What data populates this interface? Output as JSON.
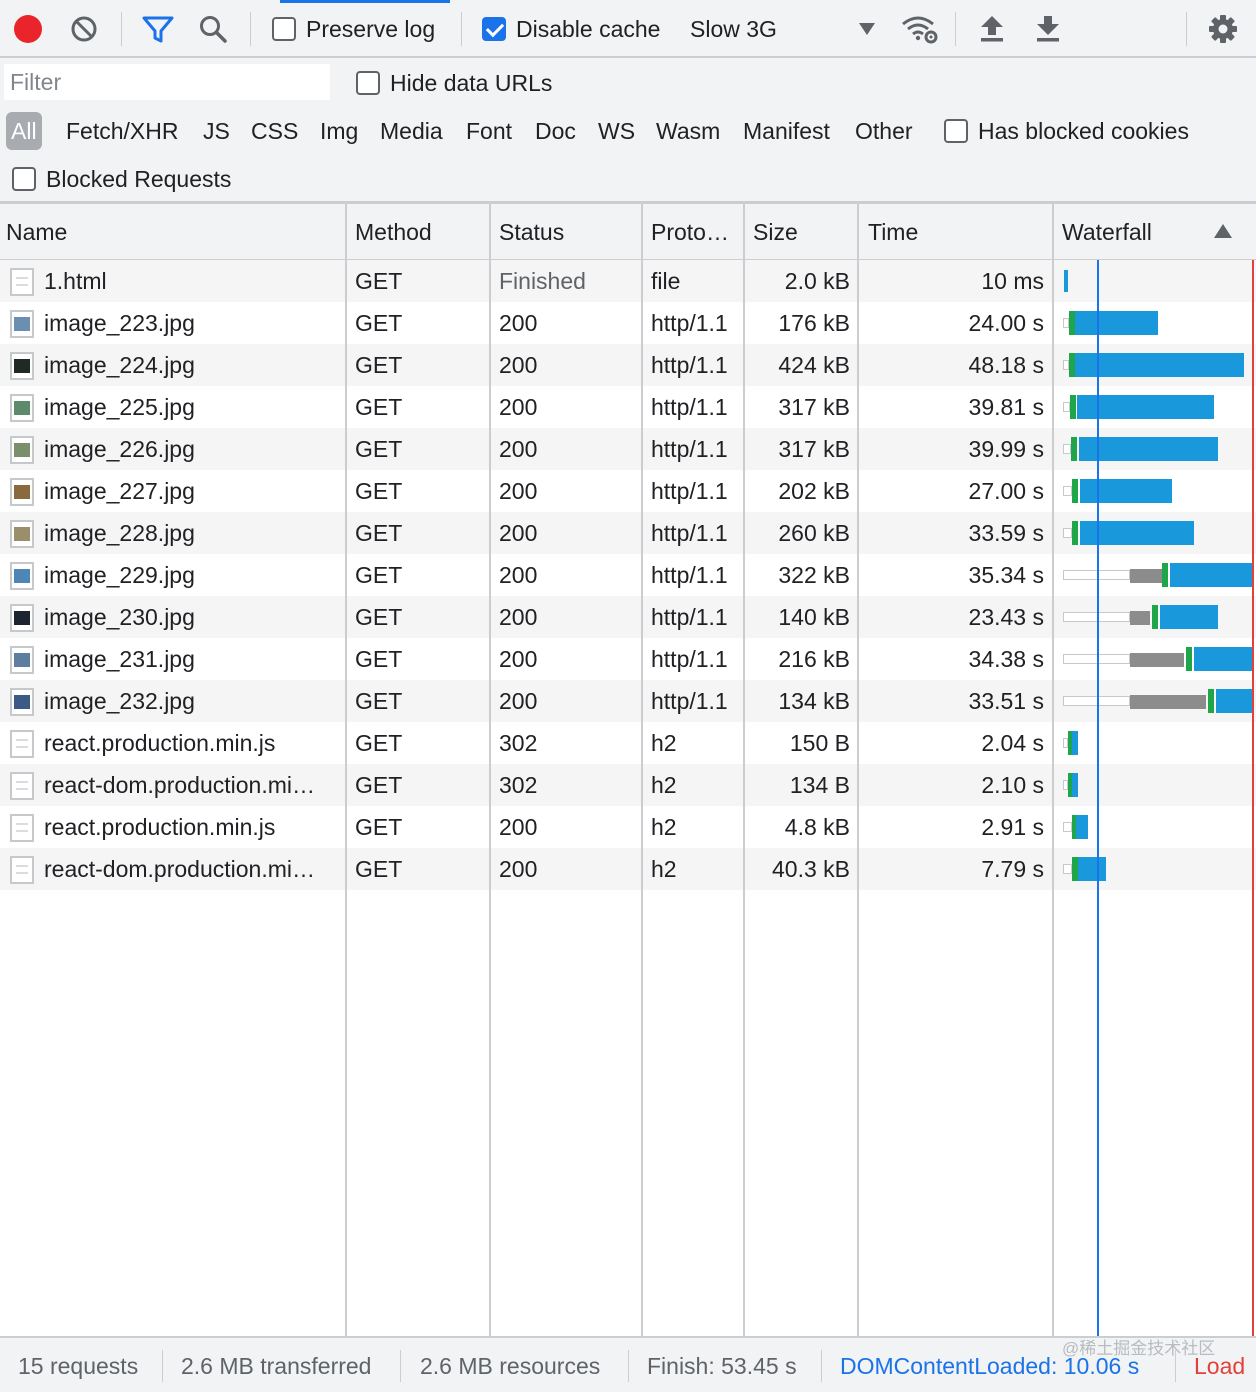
{
  "toolbar": {
    "preserve_log": {
      "label": "Preserve log",
      "checked": false
    },
    "disable_cache": {
      "label": "Disable cache",
      "checked": true
    },
    "throttling": "Slow 3G"
  },
  "filterbar": {
    "filter_placeholder": "Filter",
    "hide_data_urls": {
      "label": "Hide data URLs",
      "checked": false
    },
    "types": [
      "All",
      "Fetch/XHR",
      "JS",
      "CSS",
      "Img",
      "Media",
      "Font",
      "Doc",
      "WS",
      "Wasm",
      "Manifest",
      "Other"
    ],
    "active_type": "All",
    "has_blocked_cookies": {
      "label": "Has blocked cookies",
      "checked": false
    },
    "blocked_requests": {
      "label": "Blocked Requests",
      "checked": false
    }
  },
  "table": {
    "columns": [
      "Name",
      "Method",
      "Status",
      "Proto…",
      "Size",
      "Time",
      "Waterfall"
    ],
    "sort_column": "Waterfall",
    "rows": [
      {
        "name": "1.html",
        "method": "GET",
        "status": "Finished",
        "protocol": "file",
        "size": "2.0 kB",
        "time": "10 ms",
        "icon": "document-icon"
      },
      {
        "name": "image_223.jpg",
        "method": "GET",
        "status": "200",
        "protocol": "http/1.1",
        "size": "176 kB",
        "time": "24.00 s",
        "icon": "image-icon"
      },
      {
        "name": "image_224.jpg",
        "method": "GET",
        "status": "200",
        "protocol": "http/1.1",
        "size": "424 kB",
        "time": "48.18 s",
        "icon": "image-icon"
      },
      {
        "name": "image_225.jpg",
        "method": "GET",
        "status": "200",
        "protocol": "http/1.1",
        "size": "317 kB",
        "time": "39.81 s",
        "icon": "image-icon"
      },
      {
        "name": "image_226.jpg",
        "method": "GET",
        "status": "200",
        "protocol": "http/1.1",
        "size": "317 kB",
        "time": "39.99 s",
        "icon": "image-icon"
      },
      {
        "name": "image_227.jpg",
        "method": "GET",
        "status": "200",
        "protocol": "http/1.1",
        "size": "202 kB",
        "time": "27.00 s",
        "icon": "image-icon"
      },
      {
        "name": "image_228.jpg",
        "method": "GET",
        "status": "200",
        "protocol": "http/1.1",
        "size": "260 kB",
        "time": "33.59 s",
        "icon": "image-icon"
      },
      {
        "name": "image_229.jpg",
        "method": "GET",
        "status": "200",
        "protocol": "http/1.1",
        "size": "322 kB",
        "time": "35.34 s",
        "icon": "image-icon"
      },
      {
        "name": "image_230.jpg",
        "method": "GET",
        "status": "200",
        "protocol": "http/1.1",
        "size": "140 kB",
        "time": "23.43 s",
        "icon": "image-icon"
      },
      {
        "name": "image_231.jpg",
        "method": "GET",
        "status": "200",
        "protocol": "http/1.1",
        "size": "216 kB",
        "time": "34.38 s",
        "icon": "image-icon"
      },
      {
        "name": "image_232.jpg",
        "method": "GET",
        "status": "200",
        "protocol": "http/1.1",
        "size": "134 kB",
        "time": "33.51 s",
        "icon": "image-icon"
      },
      {
        "name": "react.production.min.js",
        "method": "GET",
        "status": "302",
        "protocol": "h2",
        "size": "150 B",
        "time": "2.04 s",
        "icon": "document-icon"
      },
      {
        "name": "react-dom.production.mi…",
        "method": "GET",
        "status": "302",
        "protocol": "h2",
        "size": "134 B",
        "time": "2.10 s",
        "icon": "document-icon"
      },
      {
        "name": "react.production.min.js",
        "method": "GET",
        "status": "200",
        "protocol": "h2",
        "size": "4.8 kB",
        "time": "2.91 s",
        "icon": "document-icon"
      },
      {
        "name": "react-dom.production.mi…",
        "method": "GET",
        "status": "200",
        "protocol": "h2",
        "size": "40.3 kB",
        "time": "7.79 s",
        "icon": "document-icon"
      }
    ]
  },
  "statusbar": {
    "requests": "15 requests",
    "transferred": "2.6 MB transferred",
    "resources": "2.6 MB resources",
    "finish": "Finish: 53.45 s",
    "dom_content_loaded": "DOMContentLoaded: 10.06 s",
    "load": "Load",
    "watermark": "@稀土掘金技术社区"
  },
  "colors": {
    "record": "#e9242b",
    "accent": "#1a73e8",
    "waterfall_download": "#1a98dc",
    "waterfall_ttfb": "#1fa54a",
    "waterfall_queued": "#8c8c8c",
    "load_line": "#e2403a"
  }
}
